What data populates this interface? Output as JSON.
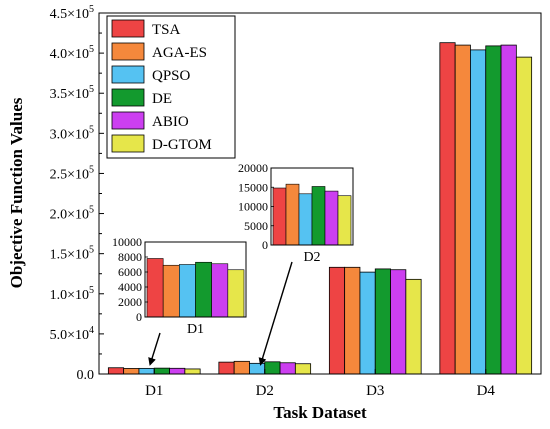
{
  "chart_data": {
    "type": "bar",
    "xlabel": "Task Dataset",
    "ylabel": "Objective Function Values",
    "categories": [
      "D1",
      "D2",
      "D3",
      "D4"
    ],
    "ylim": [
      0,
      450000
    ],
    "yticks": [
      {
        "value": 0,
        "mant": "0.0",
        "exp": ""
      },
      {
        "value": 50000,
        "mant": "5.0",
        "exp": "4"
      },
      {
        "value": 100000,
        "mant": "1.0",
        "exp": "5"
      },
      {
        "value": 150000,
        "mant": "1.5",
        "exp": "5"
      },
      {
        "value": 200000,
        "mant": "2.0",
        "exp": "5"
      },
      {
        "value": 250000,
        "mant": "2.5",
        "exp": "5"
      },
      {
        "value": 300000,
        "mant": "3.0",
        "exp": "5"
      },
      {
        "value": 350000,
        "mant": "3.5",
        "exp": "5"
      },
      {
        "value": 400000,
        "mant": "4.0",
        "exp": "5"
      },
      {
        "value": 450000,
        "mant": "4.5",
        "exp": "5"
      }
    ],
    "legend_position": "top-left",
    "grid": false,
    "series": [
      {
        "name": "TSA",
        "color": "#ee4444",
        "values": [
          7800,
          14800,
          133000,
          413000
        ]
      },
      {
        "name": "AGA-ES",
        "color": "#f5883c",
        "values": [
          6900,
          15800,
          133000,
          410000
        ]
      },
      {
        "name": "QPSO",
        "color": "#55c2f2",
        "values": [
          7000,
          13300,
          127000,
          404000
        ]
      },
      {
        "name": "DE",
        "color": "#139a2e",
        "values": [
          7300,
          15200,
          131000,
          409000
        ]
      },
      {
        "name": "ABIO",
        "color": "#cc3ff0",
        "values": [
          7100,
          14000,
          130000,
          410000
        ]
      },
      {
        "name": "D-GTOM",
        "color": "#e6e64a",
        "values": [
          6300,
          12800,
          118000,
          395000
        ]
      }
    ],
    "insets": [
      {
        "label": "D1",
        "category_index": 0,
        "ylim": [
          0,
          10000
        ],
        "yticks": [
          0,
          2000,
          4000,
          6000,
          8000,
          10000
        ]
      },
      {
        "label": "D2",
        "category_index": 1,
        "ylim": [
          0,
          20000
        ],
        "yticks": [
          0,
          5000,
          10000,
          15000,
          20000
        ]
      }
    ]
  }
}
